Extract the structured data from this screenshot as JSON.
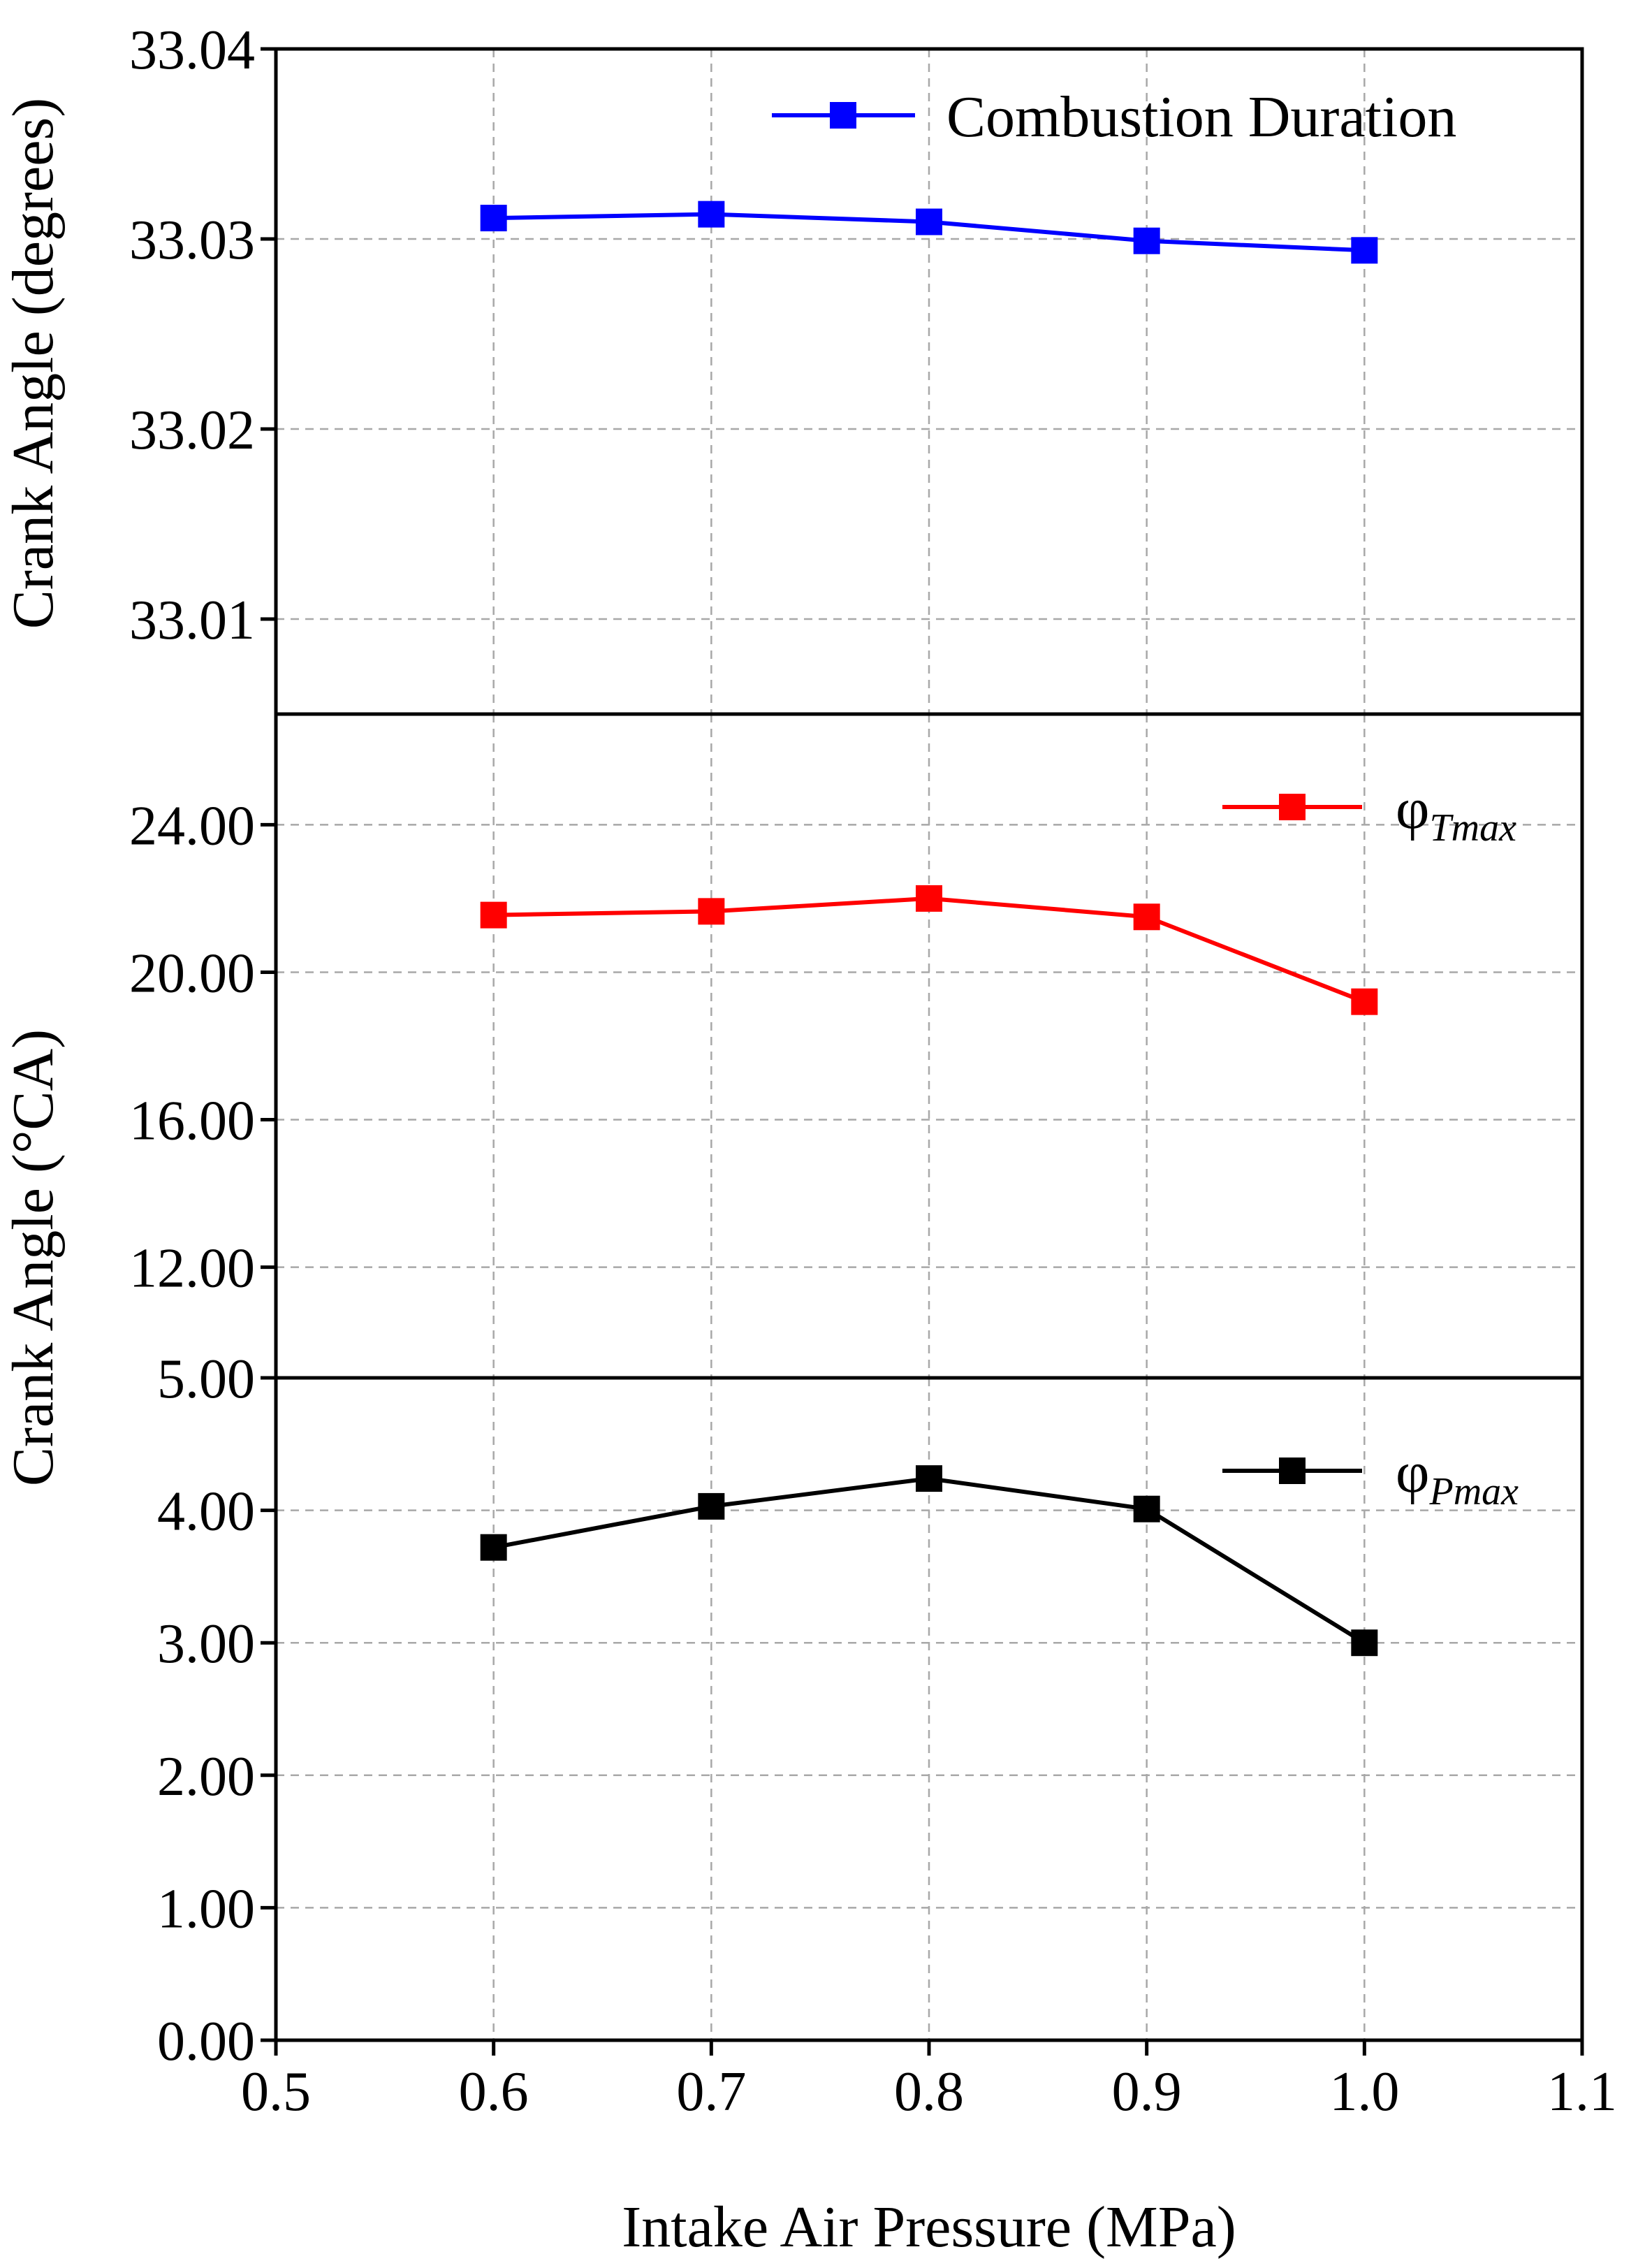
{
  "chart_data": [
    {
      "type": "line",
      "ylabel": "Crank Angle (degrees)",
      "ylim": [
        33.005,
        33.04
      ],
      "yticks": [
        "33.01",
        "33.02",
        "33.03",
        "33.04"
      ],
      "ytick_values": [
        33.01,
        33.02,
        33.03,
        33.04
      ],
      "xlim": [
        0.5,
        1.1
      ],
      "grid": true,
      "legend_position": "top-right",
      "series": [
        {
          "name": "Combustion Duration",
          "color": "#0000ff",
          "x": [
            0.6,
            0.7,
            0.8,
            0.9,
            1.0
          ],
          "y": [
            33.0311,
            33.0313,
            33.0309,
            33.0299,
            33.0294
          ]
        }
      ]
    },
    {
      "type": "line",
      "ylim": [
        9.0,
        27.0
      ],
      "yticks": [
        "12.00",
        "16.00",
        "20.00",
        "24.00"
      ],
      "ytick_values": [
        12,
        16,
        20,
        24
      ],
      "xlim": [
        0.5,
        1.1
      ],
      "grid": true,
      "legend_position": "top-right",
      "series": [
        {
          "name": "φ",
          "name_sub": "Tmax",
          "color": "#ff0000",
          "x": [
            0.6,
            0.7,
            0.8,
            0.9,
            1.0
          ],
          "y": [
            21.55,
            21.65,
            22.0,
            21.5,
            19.2
          ]
        }
      ]
    },
    {
      "type": "line",
      "ylabel": "Crank Angle (°CA)",
      "xlabel": "Intake Air Pressure (MPa)",
      "ylim": [
        0.0,
        5.0
      ],
      "yticks": [
        "0.00",
        "1.00",
        "2.00",
        "3.00",
        "4.00",
        "5.00"
      ],
      "ytick_values": [
        0,
        1,
        2,
        3,
        4,
        5
      ],
      "xlim": [
        0.5,
        1.1
      ],
      "xticks": [
        "0.5",
        "0.6",
        "0.7",
        "0.8",
        "0.9",
        "1.0",
        "1.1"
      ],
      "xtick_values": [
        0.5,
        0.6,
        0.7,
        0.8,
        0.9,
        1.0,
        1.1
      ],
      "grid": true,
      "legend_position": "top-right",
      "series": [
        {
          "name": "φ",
          "name_sub": "Pmax",
          "color": "#000000",
          "x": [
            0.6,
            0.7,
            0.8,
            0.9,
            1.0
          ],
          "y": [
            3.72,
            4.03,
            4.24,
            4.01,
            3.0
          ]
        }
      ]
    }
  ]
}
